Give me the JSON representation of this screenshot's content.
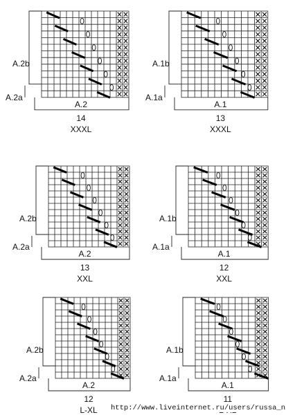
{
  "charts": [
    {
      "part_top": "A.2b",
      "part_bottom": "A.2a",
      "part_total": "A.2",
      "count": "14",
      "size": "XXXL"
    },
    {
      "part_top": "A.1b",
      "part_bottom": "A.1a",
      "part_total": "A.1",
      "count": "13",
      "size": "XXXL"
    },
    {
      "part_top": "A.2b",
      "part_bottom": "A.2a",
      "part_total": "A.2",
      "count": "13",
      "size": "XXL"
    },
    {
      "part_top": "A.1b",
      "part_bottom": "A.1a",
      "part_total": "A.1",
      "count": "12",
      "size": "XXL"
    },
    {
      "part_top": "A.2b",
      "part_bottom": "A.2a",
      "part_total": "A.2",
      "count": "12",
      "size": "L-XL"
    },
    {
      "part_top": "A.1b",
      "part_bottom": "A.1a",
      "part_total": "A.1",
      "count": "11",
      "size": "L-XL"
    }
  ],
  "source_url": "http://www.liveinternet.ru/users/russa_n/"
}
